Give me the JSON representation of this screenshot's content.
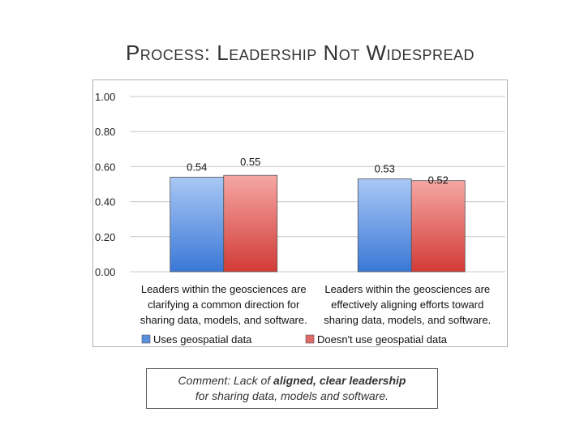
{
  "slide": {
    "title": "Process: Leadership Not Widespread",
    "comment": {
      "prefix": "Comment:  Lack of ",
      "bold": "aligned, clear leadership",
      "suffix": "for sharing data, models and software."
    }
  },
  "chart_data": {
    "type": "bar",
    "categories": [
      [
        "Leaders within the geosciences are",
        "clarifying a common direction for",
        "sharing data, models, and software."
      ],
      [
        "Leaders within the geosciences are",
        "effectively aligning efforts toward",
        "sharing data, models, and software."
      ]
    ],
    "series": [
      {
        "name": "Uses geospatial data",
        "values": [
          0.54,
          0.53
        ],
        "labels": [
          "0.54",
          "0.53"
        ],
        "color_top": "#a9c8f5",
        "color_bottom": "#3a78d6"
      },
      {
        "name": "Doesn't use geospatial data",
        "values": [
          0.55,
          0.52
        ],
        "labels": [
          "0.55",
          "0.52"
        ],
        "color_top": "#f5a7a4",
        "color_bottom": "#d23b36"
      }
    ],
    "ylim": [
      0,
      1
    ],
    "yticks": [
      "0.00",
      "0.20",
      "0.40",
      "0.60",
      "0.80",
      "1.00"
    ],
    "grid": true,
    "legend": "bottom"
  }
}
